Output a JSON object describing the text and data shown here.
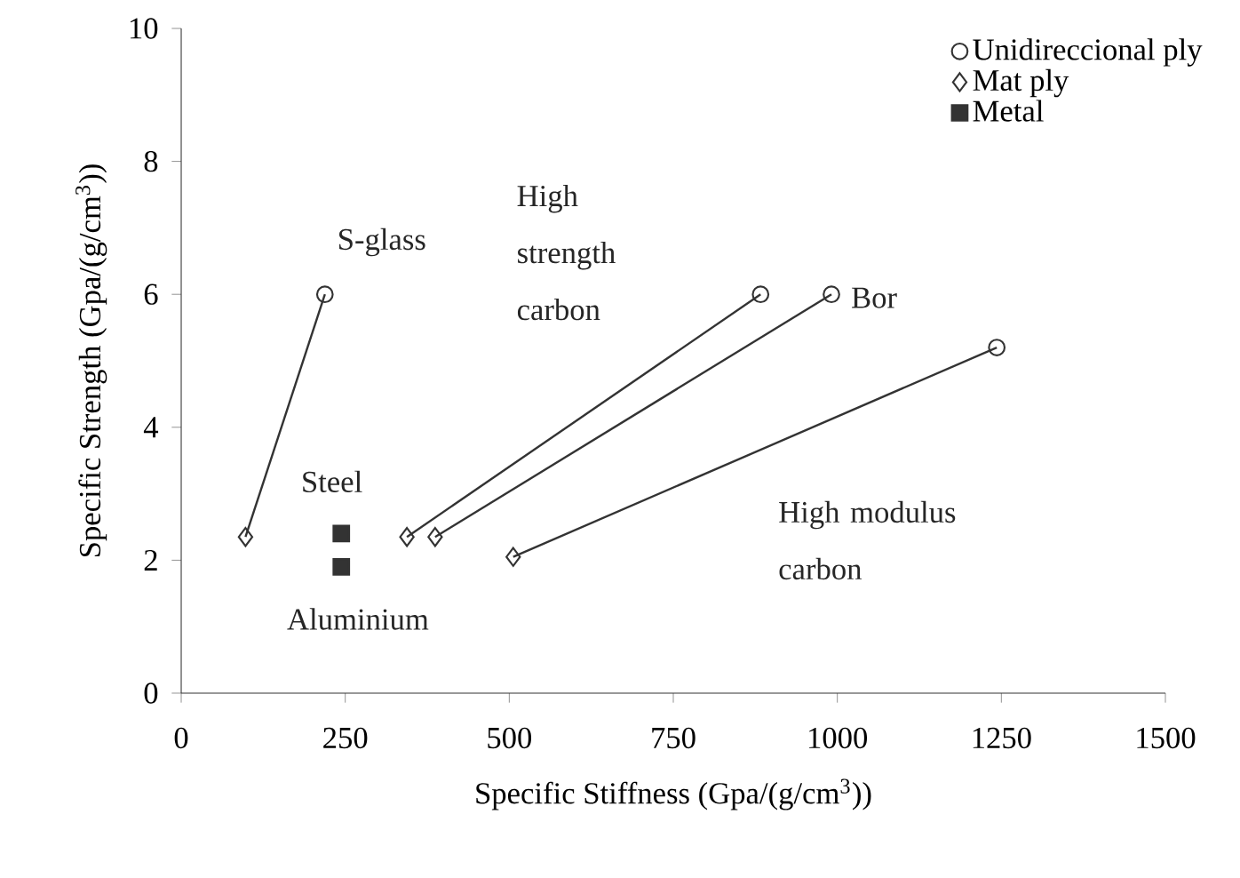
{
  "chart_data": {
    "type": "scatter",
    "xlabel": "Specific Stiffness (Gpa/(g/cm$^{3}$))",
    "ylabel": "Specific Strength (Gpa/(g/cm$^{3}$))",
    "xlim": [
      0,
      1500
    ],
    "xticks": [
      0,
      250,
      500,
      750,
      1000,
      1250,
      1500
    ],
    "ylim": [
      0,
      10
    ],
    "yticks": [
      0,
      2,
      4,
      6,
      8,
      10
    ],
    "grid": false,
    "legend": "top right",
    "series": [
      {
        "name": "Unidireccional ply",
        "marker": "circle",
        "color": "#333333",
        "x": [
          219,
          883,
          991,
          1243
        ],
        "values": [
          6,
          6,
          6,
          5.2
        ]
      },
      {
        "name": "Mat ply",
        "marker": "diamond",
        "color": "#333333",
        "x": [
          98,
          344,
          387,
          506
        ],
        "values": [
          2.35,
          2.35,
          2.35,
          2.05
        ]
      },
      {
        "name": "Metal",
        "marker": "square",
        "color": "#333333",
        "x": [
          244,
          244
        ],
        "values": [
          2.4,
          1.9
        ]
      },
      {
        "type": "line",
        "marker": "none",
        "color": "#333333",
        "x": [
          98,
          219
        ],
        "values": [
          2.35,
          6
        ]
      },
      {
        "type": "line",
        "marker": "none",
        "color": "#333333",
        "x": [
          344,
          883
        ],
        "values": [
          2.35,
          6
        ]
      },
      {
        "type": "line",
        "marker": "none",
        "color": "#333333",
        "x": [
          387,
          991
        ],
        "values": [
          2.35,
          6
        ]
      },
      {
        "type": "line",
        "marker": "none",
        "color": "#333333",
        "x": [
          506,
          1243
        ],
        "values": [
          2.05,
          5.2
        ]
      }
    ],
    "annotations": [
      {
        "text": "S-glass",
        "x": 219,
        "y": 6
      },
      "High strength carbon",
      {
        "text": "Bor",
        "x": 991,
        "y": 6
      },
      {
        "text": "Steel",
        "x": 244,
        "y": 2.4
      },
      {
        "text": "Aluminium",
        "x": 244,
        "y": 1.9
      },
      "High modulus carbon"
    ]
  }
}
